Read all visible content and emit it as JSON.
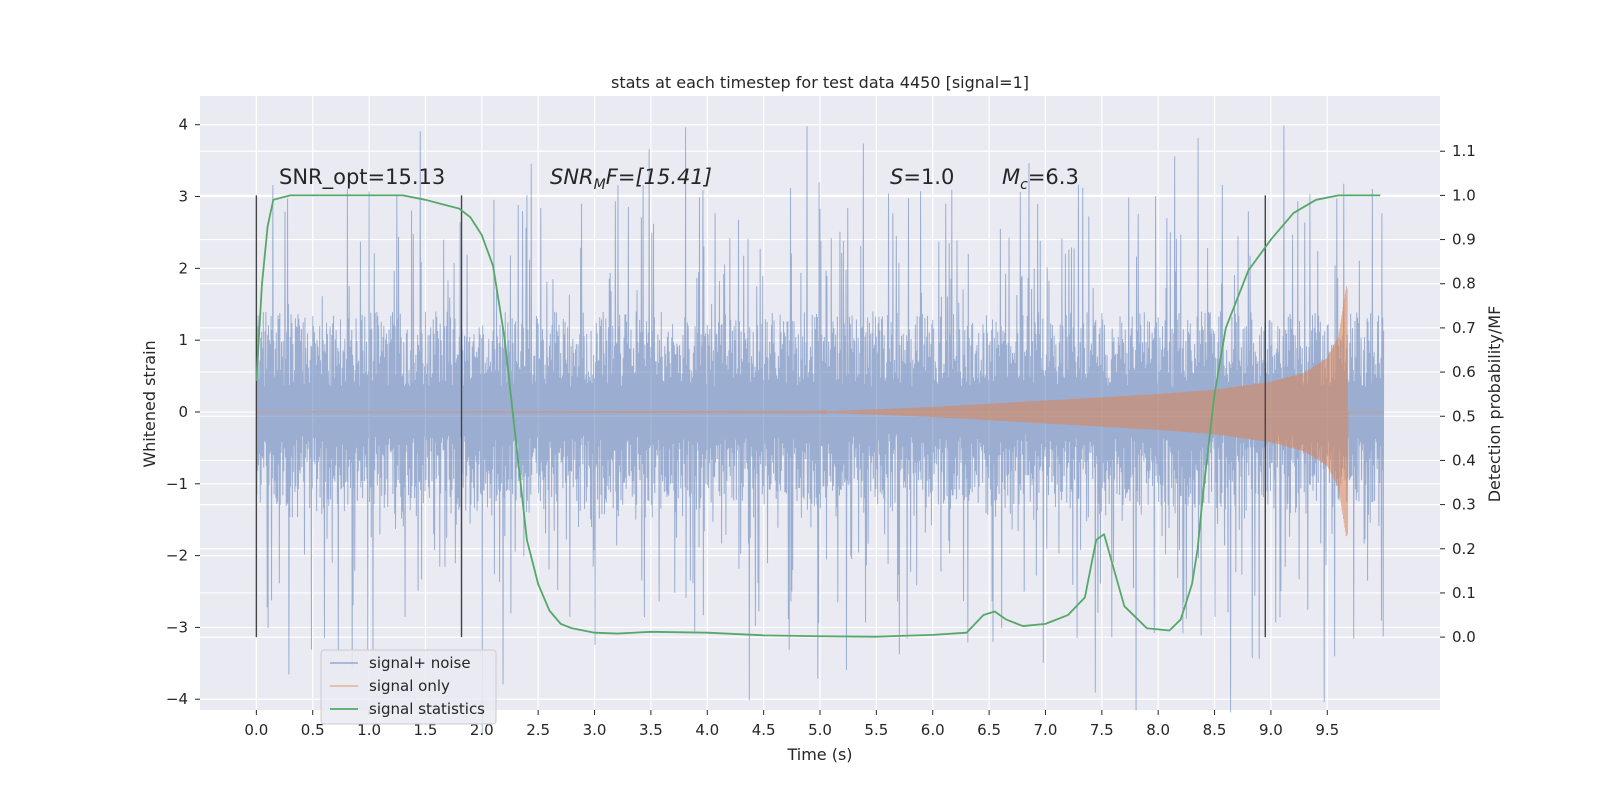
{
  "chart_data": {
    "type": "line",
    "title": "stats at each timestep for test data 4450 [signal=1]",
    "xlabel": "Time (s)",
    "ylabel": "Whitened strain",
    "y2label": "Detection probability/MF",
    "xlim": [
      -0.5,
      10.5
    ],
    "ylim": [
      -4.15,
      4.4
    ],
    "y2lim": [
      -0.165,
      1.225
    ],
    "x_ticks": [
      0.0,
      0.5,
      1.0,
      1.5,
      2.0,
      2.5,
      3.0,
      3.5,
      4.0,
      4.5,
      5.0,
      5.5,
      6.0,
      6.5,
      7.0,
      7.5,
      8.0,
      8.5,
      9.0,
      9.5
    ],
    "x_tick_labels": [
      "0.0",
      "0.5",
      "1.0",
      "1.5",
      "2.0",
      "2.5",
      "3.0",
      "3.5",
      "4.0",
      "4.5",
      "5.0",
      "5.5",
      "6.0",
      "6.5",
      "7.0",
      "7.5",
      "8.0",
      "8.5",
      "9.0",
      "9.5"
    ],
    "y_ticks": [
      4,
      3,
      2,
      1,
      0,
      -1,
      -2,
      -3,
      -4
    ],
    "y_tick_labels": [
      "4",
      "3",
      "2",
      "1",
      "0",
      "−1",
      "−2",
      "−3",
      "−4"
    ],
    "y2_ticks": [
      1.1,
      1.0,
      0.9,
      0.8,
      0.7,
      0.6,
      0.5,
      0.4,
      0.3,
      0.2,
      0.1,
      0.0
    ],
    "y2_tick_labels": [
      "1.1",
      "1.0",
      "0.9",
      "0.8",
      "0.7",
      "0.6",
      "0.5",
      "0.4",
      "0.3",
      "0.2",
      "0.1",
      "0.0"
    ],
    "grid": true,
    "legend_position": "lower-left",
    "series": [
      {
        "name": "signal+ noise",
        "color": "#4c72b0",
        "axis": "left",
        "x_range": [
          0.0,
          10.0
        ],
        "envelope_typical": [
          -1.3,
          1.4
        ],
        "envelope_peak": [
          -3.6,
          4.05
        ]
      },
      {
        "name": "signal only",
        "color": "#dd8452",
        "axis": "left",
        "x": [
          0.0,
          5.0,
          6.0,
          7.0,
          8.0,
          8.5,
          9.0,
          9.3,
          9.5,
          9.6,
          9.65,
          9.67,
          10.0
        ],
        "amplitude": [
          0.0,
          0.005,
          0.07,
          0.16,
          0.25,
          0.31,
          0.42,
          0.55,
          0.75,
          1.05,
          1.55,
          1.75,
          0.0
        ]
      },
      {
        "name": "signal statistics",
        "color": "#55a868",
        "axis": "right",
        "x": [
          0.0,
          0.05,
          0.1,
          0.15,
          0.3,
          0.5,
          0.8,
          1.0,
          1.3,
          1.5,
          1.65,
          1.8,
          1.9,
          2.0,
          2.1,
          2.2,
          2.3,
          2.4,
          2.5,
          2.6,
          2.7,
          2.8,
          3.0,
          3.2,
          3.5,
          4.0,
          4.5,
          5.0,
          5.5,
          6.0,
          6.3,
          6.45,
          6.55,
          6.65,
          6.8,
          7.0,
          7.2,
          7.35,
          7.45,
          7.52,
          7.6,
          7.7,
          7.9,
          8.1,
          8.2,
          8.3,
          8.35,
          8.4,
          8.5,
          8.6,
          8.8,
          9.0,
          9.2,
          9.4,
          9.6,
          9.8,
          9.97
        ],
        "y": [
          0.58,
          0.8,
          0.93,
          0.99,
          1.0,
          1.0,
          1.0,
          1.0,
          1.0,
          0.99,
          0.98,
          0.97,
          0.95,
          0.91,
          0.84,
          0.68,
          0.45,
          0.22,
          0.12,
          0.06,
          0.03,
          0.02,
          0.01,
          0.008,
          0.012,
          0.01,
          0.004,
          0.002,
          0.001,
          0.005,
          0.01,
          0.05,
          0.058,
          0.04,
          0.025,
          0.03,
          0.05,
          0.09,
          0.22,
          0.233,
          0.16,
          0.07,
          0.02,
          0.015,
          0.04,
          0.12,
          0.2,
          0.33,
          0.55,
          0.7,
          0.83,
          0.9,
          0.96,
          0.99,
          1.0,
          1.0,
          1.0
        ]
      }
    ],
    "vertical_markers": [
      0.0,
      1.82,
      8.95
    ],
    "annotations": {
      "snr_opt": "SNR_opt=15.13",
      "snr_mf_main": "SNR",
      "snr_mf_sub": "M",
      "snr_mf_rest": "F=[15.41]",
      "s_main": "S",
      "s_rest": "=1.0",
      "mc_main": "M",
      "mc_sub": "c",
      "mc_rest": "=6.3"
    }
  }
}
